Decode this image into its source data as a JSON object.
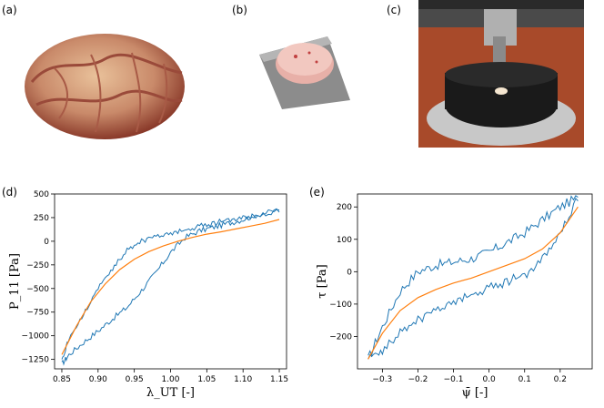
{
  "panels": {
    "a": "(a)",
    "b": "(b)",
    "c": "(c)",
    "d": "(d)",
    "e": "(e)"
  },
  "colors": {
    "experiment": "#1f77b4",
    "model": "#ff7f0e",
    "brain": "#c98a6a",
    "rheometer_bg": "#a84a2a"
  },
  "chart_data": [
    {
      "type": "line",
      "panel": "d",
      "xlabel": "λ_UT [-]",
      "ylabel": "P_11 [Pa]",
      "xlim": [
        0.84,
        1.16
      ],
      "ylim": [
        -1350,
        500
      ],
      "x_ticks": [
        0.85,
        0.9,
        0.95,
        1.0,
        1.05,
        1.1,
        1.15
      ],
      "x_tick_labels": [
        "0.85",
        "0.90",
        "0.95",
        "1.00",
        "1.05",
        "1.10",
        "1.15"
      ],
      "y_ticks": [
        -1250,
        -1000,
        -750,
        -500,
        -250,
        0,
        250,
        500
      ],
      "y_tick_labels": [
        "−1250",
        "−1000",
        "−750",
        "−500",
        "−250",
        "0",
        "250",
        "500"
      ],
      "series": [
        {
          "role": "experiment-loading",
          "color": "#1f77b4",
          "x": [
            0.85,
            0.86,
            0.88,
            0.9,
            0.92,
            0.94,
            0.96,
            0.98,
            1.0,
            1.02,
            1.04,
            1.06,
            1.08,
            1.1,
            1.12,
            1.15
          ],
          "y": [
            -1300,
            -1200,
            -1070,
            -950,
            -820,
            -700,
            -520,
            -330,
            -120,
            40,
            110,
            150,
            190,
            230,
            280,
            330
          ]
        },
        {
          "role": "experiment-unloading",
          "color": "#1f77b4",
          "x": [
            1.15,
            1.12,
            1.1,
            1.08,
            1.06,
            1.04,
            1.02,
            1.0,
            0.98,
            0.96,
            0.94,
            0.92,
            0.9,
            0.88,
            0.86,
            0.85
          ],
          "y": [
            330,
            270,
            250,
            230,
            190,
            160,
            120,
            90,
            50,
            0,
            -100,
            -280,
            -500,
            -780,
            -1030,
            -1250
          ]
        },
        {
          "role": "model",
          "color": "#ff7f0e",
          "x": [
            0.85,
            0.87,
            0.89,
            0.91,
            0.93,
            0.95,
            0.97,
            0.99,
            1.01,
            1.03,
            1.05,
            1.07,
            1.09,
            1.11,
            1.13,
            1.15
          ],
          "y": [
            -1200,
            -900,
            -640,
            -450,
            -300,
            -190,
            -110,
            -50,
            0,
            40,
            75,
            100,
            130,
            160,
            190,
            230
          ]
        }
      ]
    },
    {
      "type": "line",
      "panel": "e",
      "xlabel": "ψ̄ [-]",
      "ylabel": "τ [Pa]",
      "xlim": [
        -0.37,
        0.29
      ],
      "ylim": [
        -300,
        240
      ],
      "x_ticks": [
        -0.3,
        -0.2,
        -0.1,
        0.0,
        0.1,
        0.2
      ],
      "x_tick_labels": [
        "−0.3",
        "−0.2",
        "−0.1",
        "0.0",
        "0.1",
        "0.2"
      ],
      "y_ticks": [
        -200,
        -100,
        0,
        100,
        200
      ],
      "y_tick_labels": [
        "−200",
        "−100",
        "0",
        "100",
        "200"
      ],
      "series": [
        {
          "role": "experiment-upper-branch",
          "color": "#1f77b4",
          "x": [
            -0.34,
            -0.3,
            -0.25,
            -0.2,
            -0.15,
            -0.1,
            -0.05,
            0.0,
            0.05,
            0.1,
            0.15,
            0.2,
            0.25
          ],
          "y": [
            -270,
            -170,
            -60,
            0,
            20,
            30,
            40,
            60,
            90,
            120,
            160,
            200,
            230
          ]
        },
        {
          "role": "experiment-lower-branch",
          "color": "#1f77b4",
          "x": [
            0.25,
            0.2,
            0.15,
            0.1,
            0.05,
            0.0,
            -0.05,
            -0.1,
            -0.15,
            -0.2,
            -0.25,
            -0.3,
            -0.34
          ],
          "y": [
            230,
            120,
            40,
            -10,
            -30,
            -50,
            -70,
            -90,
            -120,
            -150,
            -190,
            -240,
            -270
          ]
        },
        {
          "role": "model",
          "color": "#ff7f0e",
          "x": [
            -0.34,
            -0.3,
            -0.25,
            -0.2,
            -0.15,
            -0.1,
            -0.05,
            0.0,
            0.05,
            0.1,
            0.15,
            0.2,
            0.25
          ],
          "y": [
            -270,
            -190,
            -120,
            -80,
            -55,
            -35,
            -20,
            0,
            20,
            40,
            70,
            120,
            200
          ]
        }
      ]
    }
  ]
}
